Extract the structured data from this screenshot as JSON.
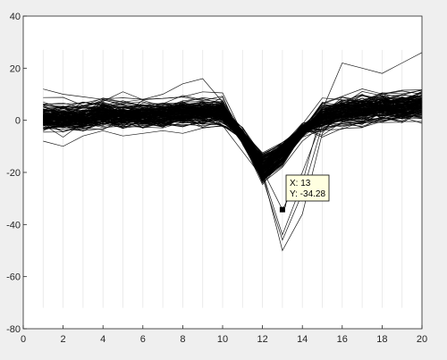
{
  "window": {
    "background": "#efefef",
    "axes_background": "#ffffff"
  },
  "chart_data": {
    "type": "line",
    "title": "",
    "xlabel": "",
    "ylabel": "",
    "xlim": [
      0,
      20
    ],
    "ylim": [
      -80,
      40
    ],
    "xticks": [
      0,
      2,
      4,
      6,
      8,
      10,
      12,
      14,
      16,
      18,
      20
    ],
    "yticks": [
      -80,
      -60,
      -40,
      -20,
      0,
      20,
      40
    ],
    "grid": "vertical faint lines at x = 1..20",
    "line_color": "#000000",
    "x": [
      1,
      2,
      3,
      4,
      5,
      6,
      7,
      8,
      9,
      10,
      11,
      12,
      13,
      14,
      15,
      16,
      17,
      18,
      19,
      20
    ],
    "mean_waveform": [
      1,
      1,
      1,
      2,
      2,
      2,
      2,
      3,
      3,
      3,
      -6,
      -18,
      -12,
      -4,
      1,
      3,
      4,
      5,
      5,
      6
    ],
    "series_count": 150,
    "series": [
      {
        "values": [
          1,
          2,
          1,
          3,
          2,
          3,
          2,
          4,
          3,
          3,
          -5,
          -19,
          -34.28,
          -20,
          0,
          4,
          4,
          6,
          5,
          7
        ]
      },
      {
        "values": [
          12,
          10,
          9,
          8,
          7,
          8,
          10,
          14,
          16,
          7,
          -8,
          -20,
          -50,
          -36,
          -5,
          4,
          6,
          7,
          6,
          8
        ]
      },
      {
        "values": [
          -8,
          -10,
          -6,
          -4,
          -6,
          -5,
          -4,
          -5,
          -3,
          -2,
          -12,
          -22,
          -46,
          -28,
          -2,
          2,
          3,
          4,
          3,
          4
        ]
      },
      {
        "values": [
          3,
          2,
          4,
          3,
          5,
          4,
          6,
          5,
          4,
          2,
          -6,
          -20,
          -44,
          -24,
          4,
          22,
          20,
          18,
          22,
          26
        ]
      },
      {
        "values": [
          6,
          5,
          7,
          6,
          5,
          6,
          5,
          6,
          7,
          5,
          -4,
          -19,
          -10,
          -4,
          0,
          2,
          3,
          4,
          4,
          5
        ]
      },
      {
        "values": [
          -3,
          -2,
          -4,
          -1,
          -3,
          -2,
          -1,
          -2,
          -1,
          0,
          -6,
          -24,
          -18,
          -8,
          -2,
          0,
          1,
          2,
          1,
          2
        ]
      }
    ],
    "datatip": {
      "x_label": "X: 13",
      "y_label": "Y: -34.28",
      "x": 13,
      "y": -34.28
    }
  }
}
